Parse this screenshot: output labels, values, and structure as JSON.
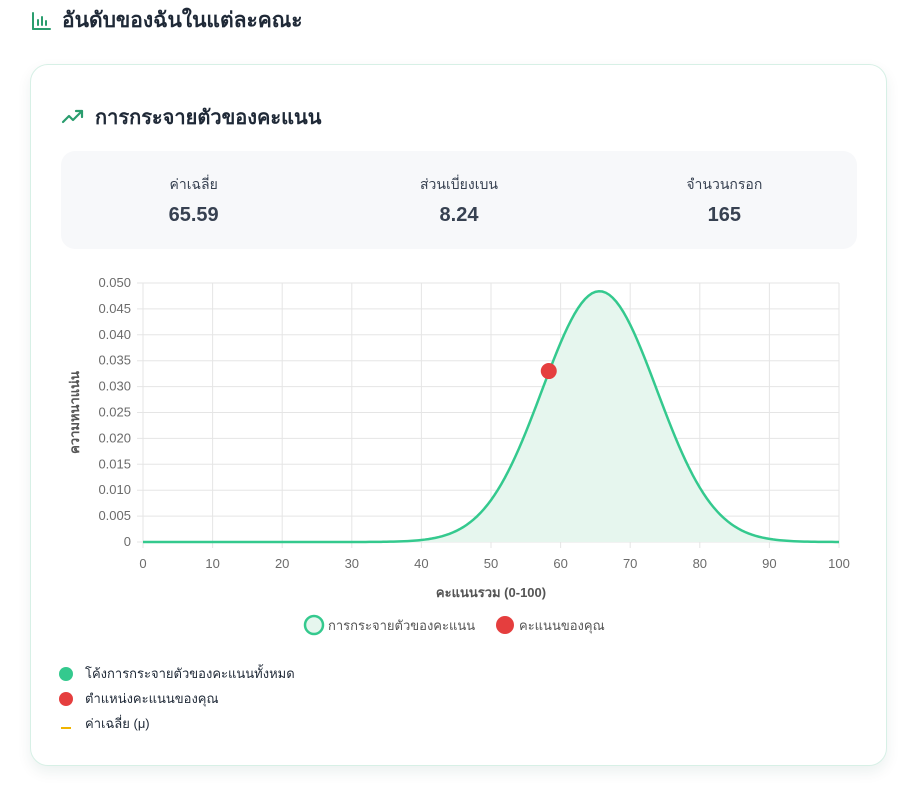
{
  "section": {
    "title": "อันดับของฉันในแต่ละคณะ",
    "icon": "bar-chart-icon"
  },
  "card": {
    "title": "การกระจายตัวของคะแนน",
    "icon": "trending-up-icon",
    "stats": [
      {
        "label": "ค่าเฉลี่ย",
        "value": "65.59"
      },
      {
        "label": "ส่วนเบี่ยงเบน",
        "value": "8.24"
      },
      {
        "label": "จำนวนกรอก",
        "value": "165"
      }
    ],
    "notes": [
      {
        "text": "โค้งการกระจายตัวของคะแนนทั้งหมด",
        "marker": "dot",
        "color": "#34c98e"
      },
      {
        "text": "ตำแหน่งคะแนนของคุณ",
        "marker": "dot",
        "color": "#e53e3e"
      },
      {
        "text": "ค่าเฉลี่ย (μ)",
        "marker": "dash",
        "color": "#f0b400"
      }
    ]
  },
  "chart_data": {
    "type": "area",
    "xlabel": "คะแนนรวม (0-100)",
    "ylabel": "ความหนาแน่น",
    "xlim": [
      0,
      100
    ],
    "ylim": [
      0,
      0.05
    ],
    "x_ticks": [
      "0",
      "10",
      "20",
      "30",
      "40",
      "50",
      "60",
      "70",
      "80",
      "90",
      "100"
    ],
    "y_ticks": [
      "0",
      "0.005",
      "0.010",
      "0.015",
      "0.020",
      "0.025",
      "0.030",
      "0.035",
      "0.040",
      "0.045",
      "0.050"
    ],
    "grid": true,
    "legend_position": "bottom",
    "series": [
      {
        "name": "การกระจายตัวของคะแนน",
        "kind": "normal-curve",
        "mean": 65.59,
        "std": 8.24,
        "color": "#34c98e",
        "fill": "#e6f6ee"
      },
      {
        "name": "คะแนนของคุณ",
        "kind": "point",
        "x": 58.3,
        "y": 0.033,
        "color": "#e53e3e"
      }
    ]
  }
}
